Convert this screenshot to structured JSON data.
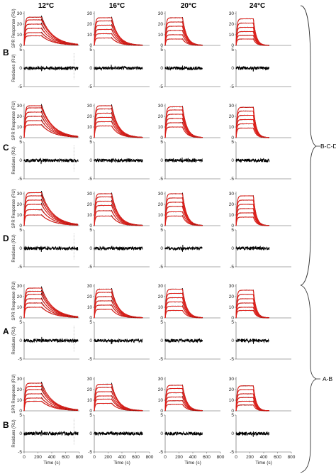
{
  "columns": [
    "12°C",
    "16°C",
    "20°C",
    "24°C"
  ],
  "rows": [
    "B",
    "C",
    "D",
    "A",
    "B"
  ],
  "groups": [
    "B-C-D",
    "A-B"
  ],
  "axes": {
    "sensorgram_ylabel": "SPR Response (RU)",
    "residues_ylabel": "Residues (RU)",
    "xlabel": "Time (s)",
    "sensorgram_yticks": [
      "0",
      "10",
      "20",
      "30"
    ],
    "residues_yticks": [
      "-5",
      "0",
      "5"
    ],
    "xticks": [
      "0",
      "200",
      "400",
      "600",
      "800"
    ]
  },
  "colors": {
    "fit": "#e0201b",
    "data": "#000000"
  },
  "chart_data": {
    "type": "line",
    "description_ylim_sensorgram": [
      0,
      32
    ],
    "description_ylim_residues": [
      -5,
      5
    ],
    "xlim": [
      0,
      800
    ],
    "injection": {
      "start": 0,
      "end": 250
    },
    "panels": [
      {
        "row": "B",
        "column": "12°C",
        "plateaus": [
          9,
          12,
          16,
          20,
          24,
          26.5
        ],
        "end_time": 780,
        "kd": 0.006
      },
      {
        "row": "B",
        "column": "16°C",
        "plateaus": [
          7,
          11,
          15,
          19,
          23,
          26
        ],
        "end_time": 700,
        "kd": 0.01
      },
      {
        "row": "B",
        "column": "20°C",
        "plateaus": [
          6,
          10,
          14,
          18,
          22,
          26
        ],
        "end_time": 540,
        "kd": 0.016
      },
      {
        "row": "B",
        "column": "24°C",
        "plateaus": [
          6,
          9.5,
          13,
          17,
          21,
          25
        ],
        "end_time": 480,
        "kd": 0.024
      },
      {
        "row": "C",
        "column": "12°C",
        "plateaus": [
          12,
          16,
          20,
          24,
          28,
          30
        ],
        "end_time": 780,
        "kd": 0.006
      },
      {
        "row": "C",
        "column": "16°C",
        "plateaus": [
          11,
          15,
          19,
          23,
          27,
          30
        ],
        "end_time": 700,
        "kd": 0.01
      },
      {
        "row": "C",
        "column": "20°C",
        "plateaus": [
          10,
          14,
          18,
          22,
          26,
          29
        ],
        "end_time": 540,
        "kd": 0.016
      },
      {
        "row": "C",
        "column": "24°C",
        "plateaus": [
          9,
          13,
          17,
          21,
          25,
          28.5
        ],
        "end_time": 480,
        "kd": 0.024
      },
      {
        "row": "D",
        "column": "12°C",
        "plateaus": [
          10,
          15,
          20,
          24,
          28,
          31
        ],
        "end_time": 780,
        "kd": 0.006
      },
      {
        "row": "D",
        "column": "16°C",
        "plateaus": [
          9,
          14,
          19,
          23,
          27,
          30
        ],
        "end_time": 700,
        "kd": 0.01
      },
      {
        "row": "D",
        "column": "20°C",
        "plateaus": [
          9,
          13,
          18,
          22,
          26,
          30
        ],
        "end_time": 540,
        "kd": 0.016
      },
      {
        "row": "D",
        "column": "24°C",
        "plateaus": [
          8,
          12,
          16,
          20,
          24,
          28
        ],
        "end_time": 480,
        "kd": 0.024
      },
      {
        "row": "A",
        "column": "12°C",
        "plateaus": [
          10,
          14,
          18,
          22,
          25,
          28
        ],
        "end_time": 780,
        "kd": 0.006
      },
      {
        "row": "A",
        "column": "16°C",
        "plateaus": [
          8,
          12,
          16,
          20,
          24,
          27
        ],
        "end_time": 700,
        "kd": 0.01
      },
      {
        "row": "A",
        "column": "20°C",
        "plateaus": [
          7,
          11,
          15,
          19,
          23,
          27
        ],
        "end_time": 540,
        "kd": 0.016
      },
      {
        "row": "A",
        "column": "24°C",
        "plateaus": [
          7,
          10,
          14,
          18,
          22,
          26
        ],
        "end_time": 480,
        "kd": 0.024
      },
      {
        "row": "B",
        "column": "12°C",
        "plateaus": [
          9,
          12,
          16,
          20,
          23,
          26
        ],
        "end_time": 780,
        "kd": 0.006
      },
      {
        "row": "B",
        "column": "16°C",
        "plateaus": [
          7,
          11,
          14,
          18,
          22,
          25
        ],
        "end_time": 700,
        "kd": 0.01
      },
      {
        "row": "B",
        "column": "20°C",
        "plateaus": [
          6,
          9.5,
          13,
          17,
          21,
          24
        ],
        "end_time": 540,
        "kd": 0.016
      },
      {
        "row": "B",
        "column": "24°C",
        "plateaus": [
          5.5,
          9,
          12.5,
          16,
          20,
          23.5
        ],
        "end_time": 480,
        "kd": 0.024
      }
    ]
  }
}
